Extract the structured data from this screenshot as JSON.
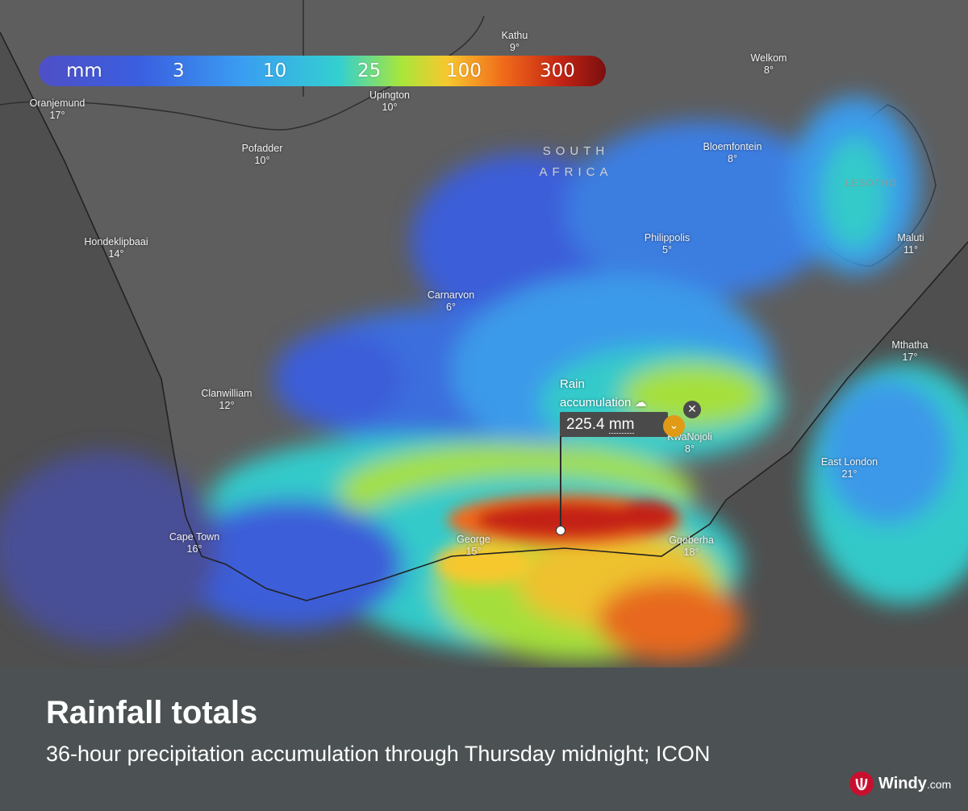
{
  "legend": {
    "labels": [
      "mm",
      "3",
      "10",
      "25",
      "100",
      "300"
    ]
  },
  "map": {
    "country_lines": [
      "SOUTH",
      "AFRICA"
    ],
    "lesotho": "LESOTHO",
    "places": [
      {
        "name": "Kathu",
        "temp": "9°"
      },
      {
        "name": "Welkom",
        "temp": "8°"
      },
      {
        "name": "Oranjemund",
        "temp": "17°"
      },
      {
        "name": "Upington",
        "temp": "10°"
      },
      {
        "name": "Pofadder",
        "temp": "10°"
      },
      {
        "name": "Bloemfontein",
        "temp": "8°"
      },
      {
        "name": "Hondeklipbaai",
        "temp": "14°"
      },
      {
        "name": "Philippolis",
        "temp": "5°"
      },
      {
        "name": "Maluti",
        "temp": "11°"
      },
      {
        "name": "Carnarvon",
        "temp": "6°"
      },
      {
        "name": "Mthatha",
        "temp": "17°"
      },
      {
        "name": "Clanwilliam",
        "temp": "12°"
      },
      {
        "name": "KwaNojoli",
        "temp": "8°"
      },
      {
        "name": "East London",
        "temp": "21°"
      },
      {
        "name": "Cape Town",
        "temp": "16°"
      },
      {
        "name": "George",
        "temp": "15°"
      },
      {
        "name": "Gqeberha",
        "temp": "18°"
      }
    ]
  },
  "popup": {
    "label_line1": "Rain",
    "label_line2": "accumulation",
    "value": "225.4",
    "unit": "mm"
  },
  "footer": {
    "title": "Rainfall totals",
    "subtitle": "36-hour precipitation accumulation through Thursday midnight; ICON",
    "brand_name": "Windy",
    "brand_suffix": ".com"
  },
  "colors": {
    "footer_bg": "#4c5253",
    "land": "#5e5e5e",
    "popup_accent": "#e09a16",
    "brand": "#c8102e"
  }
}
